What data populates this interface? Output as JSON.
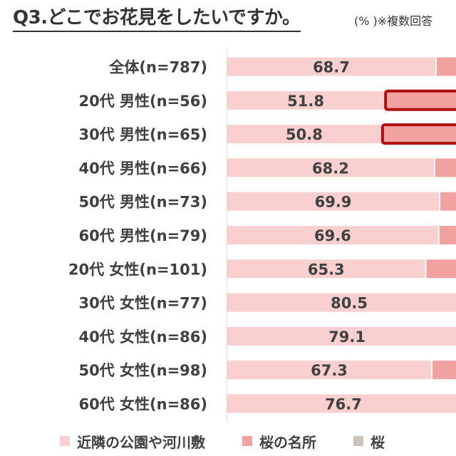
{
  "chart_data": {
    "type": "bar",
    "orientation": "horizontal",
    "title": "Q3.どこでお花見をしたいですか。",
    "subtitle": "(% )※複数回答",
    "unit": "%",
    "categories": [
      "全体(n=787)",
      "20代 男性(n=56)",
      "30代 男性(n=65)",
      "40代 男性(n=66)",
      "50代 男性(n=73)",
      "60代 男性(n=79)",
      "20代 女性(n=101)",
      "30代 女性(n=77)",
      "40代 女性(n=86)",
      "50代 女性(n=98)",
      "60代 女性(n=86)"
    ],
    "series": [
      {
        "name": "近隣の公園や河川敷",
        "color": "#f9cfcf",
        "values": [
          68.7,
          51.8,
          50.8,
          68.2,
          69.9,
          69.6,
          65.3,
          80.5,
          79.1,
          67.3,
          76.7
        ],
        "labels": [
          "68.7",
          "51.8",
          "50.8",
          "68.2",
          "69.9",
          "69.6",
          "65.3",
          "80.5",
          "79.1",
          "67.3",
          "76.7"
        ]
      },
      {
        "name": "桜の名所",
        "color": "#f2a1a1",
        "highlight_border": "#b01010",
        "highlighted_categories": [
          "20代 男性(n=56)",
          "30代 男性(n=65)"
        ]
      },
      {
        "name": "桜",
        "color": "#cbc3bd"
      }
    ],
    "legend_position": "bottom",
    "grid": false
  }
}
